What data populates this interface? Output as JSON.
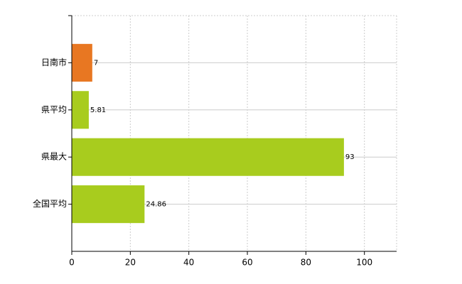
{
  "chart_data": {
    "type": "hbar",
    "categories": [
      "日南市",
      "県平均",
      "県最大",
      "全国平均"
    ],
    "values": [
      7,
      5.81,
      93,
      24.86
    ],
    "colors": [
      "#e87722",
      "#a8cc1e",
      "#a8cc1e",
      "#a8cc1e"
    ],
    "xlim": [
      0,
      111
    ],
    "xticks": [
      0,
      20,
      40,
      60,
      80,
      100
    ],
    "grid": true
  }
}
